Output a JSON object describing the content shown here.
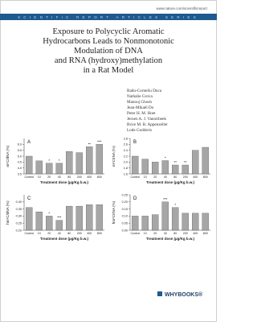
{
  "header": {
    "url": "www.nature.com/scientificreport",
    "series_band": "SCIENTIFIC REPORT ARTICLES SERIES"
  },
  "title": [
    "Exposure to Polycyclic Aromatic",
    "Hydrocarbons Leads to Nonmonotonic",
    "Modulation of DNA",
    "and RNA (hydroxy)methylation",
    "in a Rat Model"
  ],
  "authors": [
    "Radu-Corneliu Duca",
    "Nathalie Grova",
    "Manouj Ghosh",
    "Jean-Mikaël Do",
    "Peter H. M. Hoet",
    "Jeroen A. J. Vanoirbeek",
    "Brice M. R. Appenzeller",
    "Lode Godderis"
  ],
  "chart_data": [
    {
      "type": "bar",
      "panel": "A",
      "y_label": "m⁵C/dNA (%)",
      "x_label": "Treatment dose (µg/Kg b.w.)",
      "categories": [
        "Control",
        "10",
        "20",
        "40",
        "80",
        "200",
        "400",
        "800"
      ],
      "values": [
        5.0,
        4.6,
        4.4,
        4.4,
        5.4,
        5.3,
        5.8,
        6.0
      ],
      "significance": [
        null,
        null,
        "*",
        "*",
        null,
        null,
        "**",
        "***"
      ],
      "color": "#a6a6a6",
      "ylim": [
        3.5,
        6.5
      ],
      "yticks": [
        3.5,
        {
          "value": 4,
          "label": "4.0"
        },
        4.5,
        {
          "value": 5,
          "label": "5.0"
        },
        5.5,
        {
          "value": 6,
          "label": "6.0"
        }
      ]
    },
    {
      "type": "bar",
      "panel": "B",
      "y_label": "m⁵C/rNA (%)",
      "x_label": "Treatment dose (µg/Kg b.w.)",
      "categories": [
        "Control",
        "10",
        "20",
        "40",
        "80",
        "200",
        "400",
        "800"
      ],
      "values": [
        2.2,
        2.1,
        2.0,
        2.05,
        1.9,
        1.9,
        2.4,
        2.5
      ],
      "significance": [
        null,
        null,
        null,
        "*",
        "**",
        "**",
        null,
        null
      ],
      "color": "#a6a6a6",
      "ylim": [
        1.6,
        2.8
      ],
      "yticks": [
        1.6,
        1.8,
        {
          "value": 2,
          "label": "2.0"
        },
        2.2,
        2.4,
        2.6,
        2.8
      ]
    },
    {
      "type": "bar",
      "panel": "C",
      "y_label": "hm⁵C/dNA (%)",
      "x_label": "Treatment dose (µg/Kg b.w.)",
      "categories": [
        "Control",
        "10",
        "20",
        "40",
        "80",
        "200",
        "400",
        "800"
      ],
      "values": [
        0.36,
        0.33,
        0.3,
        0.27,
        0.37,
        0.37,
        0.38,
        0.38
      ],
      "significance": [
        null,
        null,
        "*",
        "***",
        null,
        null,
        null,
        null
      ],
      "color": "#a6a6a6",
      "ylim": [
        0.2,
        0.45
      ],
      "yticks": [
        {
          "value": 0.2,
          "label": "0.20"
        },
        0.25,
        {
          "value": 0.3,
          "label": "0.30"
        },
        0.35,
        {
          "value": 0.4,
          "label": "0.40"
        }
      ]
    },
    {
      "type": "bar",
      "panel": "D",
      "y_label": "hm⁵C/rNA (%)",
      "x_label": "Treatment dose (µg/Kg b.w.)",
      "categories": [
        "Control",
        "10",
        "20",
        "40",
        "80",
        "200",
        "400",
        "800"
      ],
      "values": [
        0.1,
        0.1,
        0.11,
        0.2,
        0.16,
        0.12,
        0.12,
        0.12
      ],
      "significance": [
        null,
        null,
        null,
        "***",
        "*",
        null,
        null,
        null
      ],
      "color": "#a6a6a6",
      "ylim": [
        0,
        0.25
      ],
      "yticks": [
        {
          "value": 0,
          "label": "0.00"
        },
        0.05,
        {
          "value": 0.1,
          "label": "0.10"
        },
        0.15,
        {
          "value": 0.2,
          "label": "0.20"
        },
        0.25
      ]
    }
  ],
  "publisher": "WHYBOOKS®"
}
